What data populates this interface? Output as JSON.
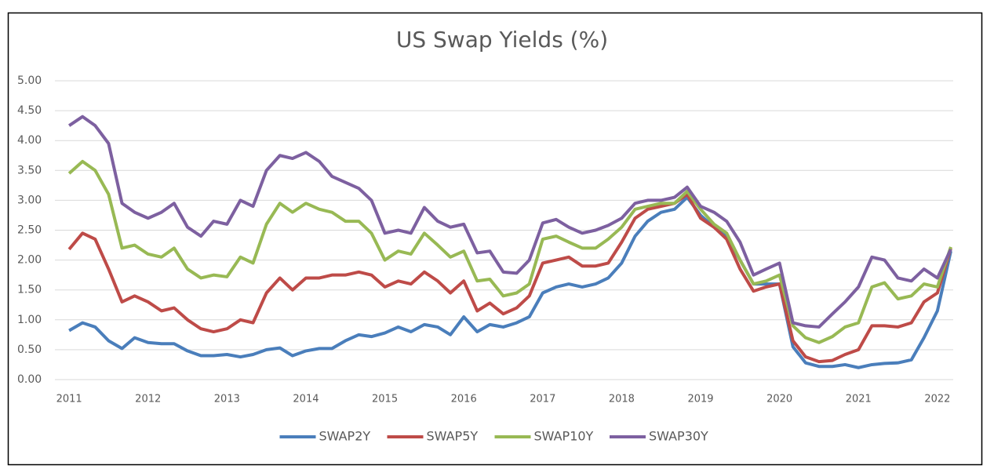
{
  "chart_data": {
    "type": "line",
    "title": "US Swap Yields (%)",
    "x": [
      2011,
      2011.17,
      2011.33,
      2011.5,
      2011.67,
      2011.83,
      2012,
      2012.17,
      2012.33,
      2012.5,
      2012.67,
      2012.83,
      2013,
      2013.17,
      2013.33,
      2013.5,
      2013.67,
      2013.83,
      2014,
      2014.17,
      2014.33,
      2014.5,
      2014.67,
      2014.83,
      2015,
      2015.17,
      2015.33,
      2015.5,
      2015.67,
      2015.83,
      2016,
      2016.17,
      2016.33,
      2016.5,
      2016.67,
      2016.83,
      2017,
      2017.17,
      2017.33,
      2017.5,
      2017.67,
      2017.83,
      2018,
      2018.17,
      2018.33,
      2018.5,
      2018.67,
      2018.83,
      2019,
      2019.17,
      2019.33,
      2019.5,
      2019.67,
      2019.83,
      2020,
      2020.17,
      2020.33,
      2020.5,
      2020.67,
      2020.83,
      2021,
      2021.17,
      2021.33,
      2021.5,
      2021.67,
      2021.83,
      2022,
      2022.17
    ],
    "series": [
      {
        "name": "SWAP2Y",
        "color": "#4a7ebb",
        "values": [
          0.82,
          0.95,
          0.88,
          0.65,
          0.52,
          0.7,
          0.62,
          0.6,
          0.6,
          0.48,
          0.4,
          0.4,
          0.42,
          0.38,
          0.42,
          0.5,
          0.53,
          0.4,
          0.48,
          0.52,
          0.52,
          0.65,
          0.75,
          0.72,
          0.78,
          0.88,
          0.8,
          0.92,
          0.88,
          0.75,
          1.05,
          0.8,
          0.92,
          0.88,
          0.95,
          1.05,
          1.45,
          1.55,
          1.6,
          1.55,
          1.6,
          1.7,
          1.95,
          2.4,
          2.65,
          2.8,
          2.85,
          3.05,
          2.75,
          2.55,
          2.4,
          2.0,
          1.6,
          1.6,
          1.6,
          0.55,
          0.28,
          0.22,
          0.22,
          0.25,
          0.2,
          0.25,
          0.27,
          0.28,
          0.33,
          0.7,
          1.15,
          2.15
        ]
      },
      {
        "name": "SWAP5Y",
        "color": "#be4b48",
        "values": [
          2.18,
          2.45,
          2.35,
          1.85,
          1.3,
          1.4,
          1.3,
          1.15,
          1.2,
          1.0,
          0.85,
          0.8,
          0.85,
          1.0,
          0.95,
          1.45,
          1.7,
          1.5,
          1.7,
          1.7,
          1.75,
          1.75,
          1.8,
          1.75,
          1.55,
          1.65,
          1.6,
          1.8,
          1.65,
          1.45,
          1.65,
          1.15,
          1.28,
          1.1,
          1.2,
          1.4,
          1.95,
          2.0,
          2.05,
          1.9,
          1.9,
          1.95,
          2.3,
          2.7,
          2.85,
          2.9,
          2.95,
          3.1,
          2.7,
          2.55,
          2.35,
          1.85,
          1.48,
          1.55,
          1.6,
          0.65,
          0.38,
          0.3,
          0.32,
          0.42,
          0.5,
          0.9,
          0.9,
          0.88,
          0.95,
          1.3,
          1.45,
          2.2
        ]
      },
      {
        "name": "SWAP10Y",
        "color": "#98b954",
        "values": [
          3.45,
          3.65,
          3.5,
          3.1,
          2.2,
          2.25,
          2.1,
          2.05,
          2.2,
          1.85,
          1.7,
          1.75,
          1.72,
          2.05,
          1.95,
          2.6,
          2.95,
          2.8,
          2.95,
          2.85,
          2.8,
          2.65,
          2.65,
          2.45,
          2.0,
          2.15,
          2.1,
          2.45,
          2.25,
          2.05,
          2.15,
          1.65,
          1.68,
          1.4,
          1.45,
          1.6,
          2.35,
          2.4,
          2.3,
          2.2,
          2.2,
          2.35,
          2.55,
          2.85,
          2.9,
          2.95,
          2.95,
          3.15,
          2.85,
          2.6,
          2.45,
          2.0,
          1.6,
          1.65,
          1.75,
          0.9,
          0.7,
          0.62,
          0.72,
          0.88,
          0.95,
          1.55,
          1.62,
          1.35,
          1.4,
          1.6,
          1.55,
          2.22
        ]
      },
      {
        "name": "SWAP30Y",
        "color": "#7d60a0",
        "values": [
          4.25,
          4.4,
          4.25,
          3.95,
          2.95,
          2.8,
          2.7,
          2.8,
          2.95,
          2.55,
          2.4,
          2.65,
          2.6,
          3.0,
          2.9,
          3.5,
          3.75,
          3.7,
          3.8,
          3.65,
          3.4,
          3.3,
          3.2,
          3.0,
          2.45,
          2.5,
          2.45,
          2.88,
          2.65,
          2.55,
          2.6,
          2.12,
          2.15,
          1.8,
          1.78,
          2.0,
          2.62,
          2.68,
          2.55,
          2.45,
          2.5,
          2.58,
          2.7,
          2.95,
          3.0,
          3.0,
          3.05,
          3.22,
          2.9,
          2.8,
          2.65,
          2.3,
          1.75,
          1.85,
          1.95,
          0.95,
          0.9,
          0.88,
          1.1,
          1.3,
          1.55,
          2.05,
          2.0,
          1.7,
          1.65,
          1.85,
          1.7,
          2.18
        ]
      }
    ],
    "xlim": [
      2010.82,
      2022.2
    ],
    "xticks": [
      2011,
      2012,
      2013,
      2014,
      2015,
      2016,
      2017,
      2018,
      2019,
      2020,
      2021,
      2022
    ],
    "ylim": [
      0,
      5
    ],
    "yticks": [
      {
        "value": 0,
        "label": "0.00"
      },
      {
        "value": 0.5,
        "label": "0.50"
      },
      {
        "value": 1,
        "label": "1.00"
      },
      {
        "value": 1.5,
        "label": "1.50"
      },
      {
        "value": 2,
        "label": "2.00"
      },
      {
        "value": 2.5,
        "label": "2.50"
      },
      {
        "value": 3,
        "label": "3.00"
      },
      {
        "value": 3.5,
        "label": "3.50"
      },
      {
        "value": 4,
        "label": "4.00"
      },
      {
        "value": 4.5,
        "label": "4.50"
      },
      {
        "value": 5,
        "label": "5.00"
      }
    ],
    "grid": true,
    "legend": "bottom"
  }
}
